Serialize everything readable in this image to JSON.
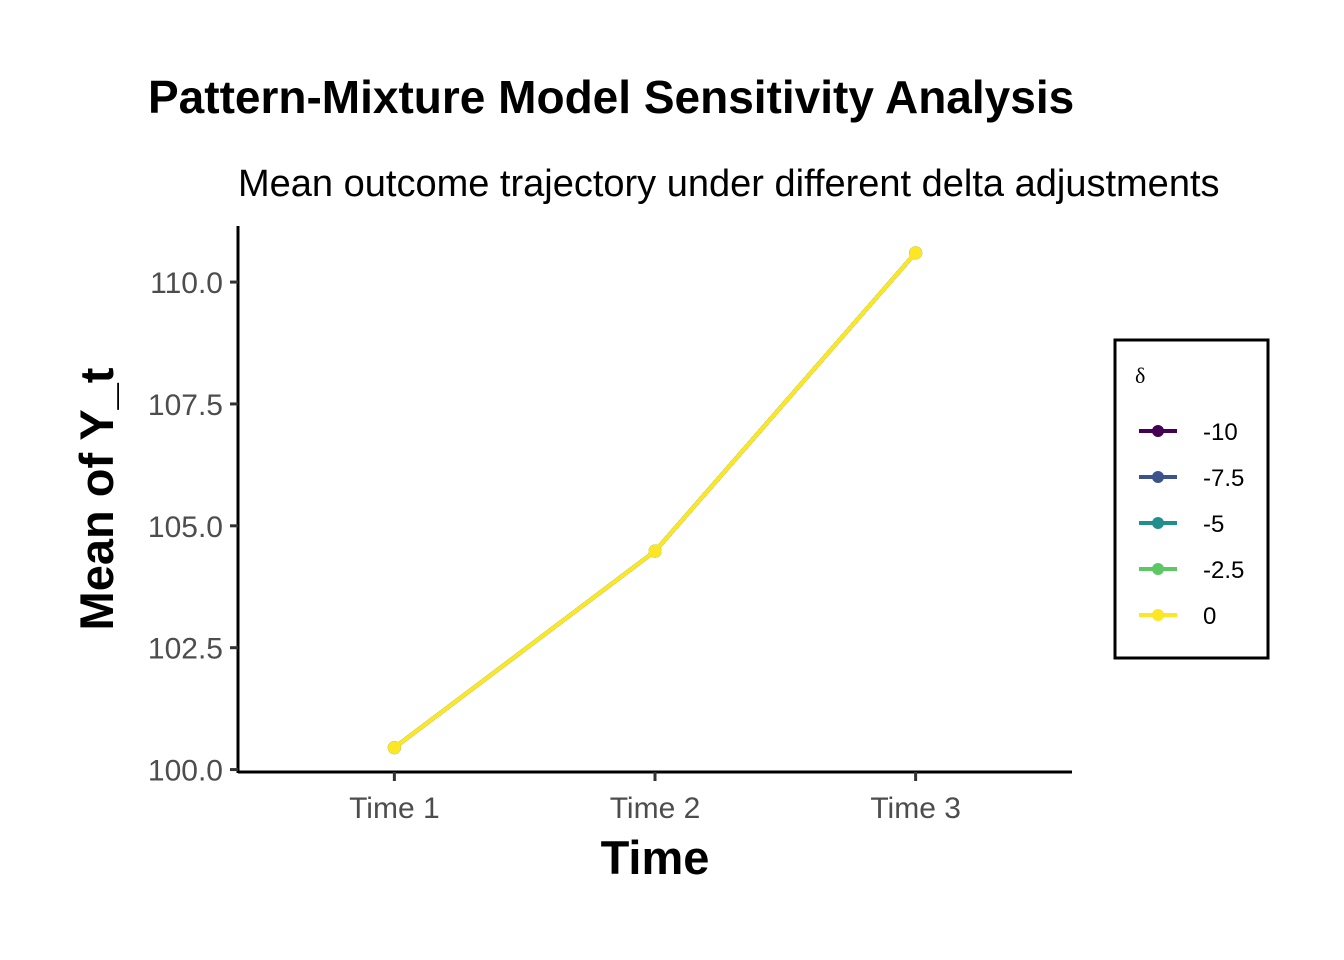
{
  "chart_data": {
    "type": "line",
    "title": "Pattern-Mixture Model Sensitivity Analysis",
    "subtitle": "Mean outcome trajectory under different delta adjustments",
    "xlabel": "Time",
    "ylabel": "Mean of Y_t",
    "categories": [
      "Time 1",
      "Time 2",
      "Time 3"
    ],
    "ylim": [
      99.95,
      111.15
    ],
    "yticks": [
      100.0,
      102.5,
      105.0,
      107.5,
      110.0
    ],
    "ytick_labels": [
      "100.0",
      "102.5",
      "105.0",
      "107.5",
      "110.0"
    ],
    "grid": false,
    "legend": {
      "title": "δ",
      "placement": "right",
      "entries": [
        "-10",
        "-7.5",
        "-5",
        "-2.5",
        "0"
      ]
    },
    "series": [
      {
        "name": "-10",
        "color": "#440154",
        "values": [
          100.45,
          104.48,
          110.6
        ]
      },
      {
        "name": "-7.5",
        "color": "#3B528B",
        "values": [
          100.45,
          104.48,
          110.6
        ]
      },
      {
        "name": "-5",
        "color": "#21908C",
        "values": [
          100.45,
          104.48,
          110.6
        ]
      },
      {
        "name": "-2.5",
        "color": "#5DC863",
        "values": [
          100.45,
          104.48,
          110.6
        ]
      },
      {
        "name": "0",
        "color": "#FDE725",
        "values": [
          100.45,
          104.48,
          110.6
        ]
      }
    ]
  }
}
